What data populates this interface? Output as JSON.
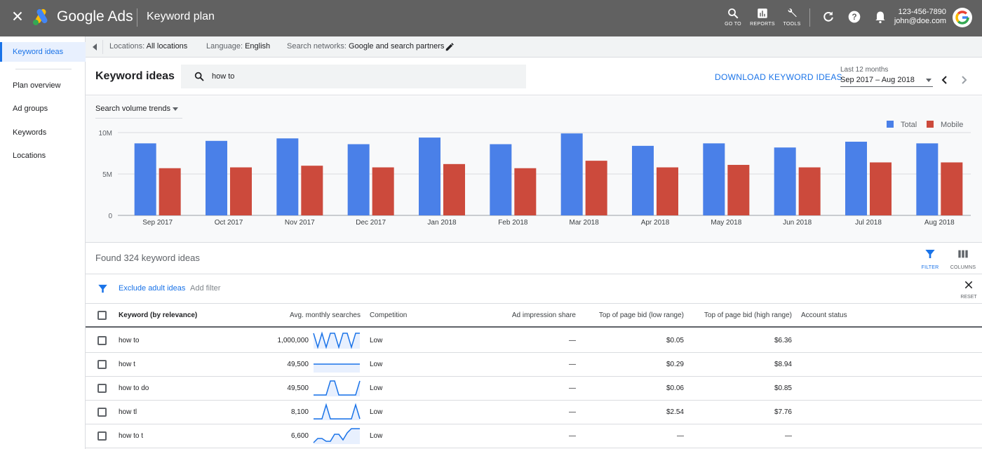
{
  "topbar": {
    "brand": "Google Ads",
    "page_title": "Keyword plan",
    "actions": [
      {
        "icon": "search-icon",
        "label": "GO TO"
      },
      {
        "icon": "bar-chart-icon",
        "label": "REPORTS"
      },
      {
        "icon": "wrench-icon",
        "label": "TOOLS"
      }
    ],
    "account_id": "123-456-7890",
    "account_email": "john@doe.com"
  },
  "sidebar": {
    "items": [
      {
        "label": "Keyword ideas",
        "active": true
      },
      {
        "label": "Plan overview"
      },
      {
        "label": "Ad groups"
      },
      {
        "label": "Keywords"
      },
      {
        "label": "Locations"
      }
    ]
  },
  "subbar": {
    "locations_label": "Locations:",
    "locations_value": "All locations",
    "language_label": "Language:",
    "language_value": "English",
    "networks_label": "Search networks:",
    "networks_value": "Google and search partners"
  },
  "header": {
    "title": "Keyword ideas",
    "search_value": "how to",
    "download_label": "DOWNLOAD KEYWORD IDEAS",
    "date_caption": "Last 12 months",
    "date_value": "Sep 2017 – Aug 2018"
  },
  "chart_controls": {
    "metric_select": "Search volume trends"
  },
  "colors": {
    "total": "#4a80e8",
    "mobile": "#cc4a3c",
    "accent": "#1a73e8"
  },
  "chart_data": {
    "type": "bar",
    "categories": [
      "Sep 2017",
      "Oct 2017",
      "Nov 2017",
      "Dec 2017",
      "Jan 2018",
      "Feb 2018",
      "Mar 2018",
      "Apr 2018",
      "May 2018",
      "Jun 2018",
      "Jul 2018",
      "Aug 2018"
    ],
    "series": [
      {
        "name": "Total",
        "values": [
          8.7,
          9.0,
          9.3,
          8.6,
          9.4,
          8.6,
          9.9,
          8.4,
          8.7,
          8.2,
          8.9,
          8.7
        ]
      },
      {
        "name": "Mobile",
        "values": [
          5.7,
          5.8,
          6.0,
          5.8,
          6.2,
          5.7,
          6.6,
          5.8,
          6.1,
          5.8,
          6.4,
          6.4
        ]
      }
    ],
    "unit": "M",
    "yticks": [
      "0",
      "5M",
      "10M"
    ],
    "ylim": [
      0,
      10
    ],
    "grid": true,
    "legend_position": "top-right"
  },
  "results": {
    "found_text": "Found 324 keyword ideas",
    "filter_label": "FILTER",
    "columns_label": "COLUMNS",
    "exclude_label": "Exclude adult ideas",
    "add_filter": "Add filter",
    "reset_label": "RESET"
  },
  "table": {
    "headers": [
      "Keyword (by relevance)",
      "Avg. monthly searches",
      "Competition",
      "Ad impression share",
      "Top of page bid (low range)",
      "Top of page bid (high range)",
      "Account status"
    ],
    "rows": [
      {
        "keyword": "how to",
        "searches": "1,000,000",
        "competition": "Low",
        "impression_share": "—",
        "bid_low": "$0.05",
        "bid_high": "$6.36",
        "trend": [
          1,
          0,
          1,
          0,
          1,
          1,
          0,
          1,
          1,
          0,
          1,
          1
        ]
      },
      {
        "keyword": "how t",
        "searches": "49,500",
        "competition": "Low",
        "impression_share": "—",
        "bid_low": "$0.29",
        "bid_high": "$8.94",
        "trend": [
          0.5,
          0.5,
          0.5,
          0.5,
          0.5,
          0.5,
          0.5,
          0.5,
          0.5,
          0.5,
          0.5,
          0.5
        ]
      },
      {
        "keyword": "how to do",
        "searches": "49,500",
        "competition": "Low",
        "impression_share": "—",
        "bid_low": "$0.06",
        "bid_high": "$0.85",
        "trend": [
          0,
          0,
          0,
          0,
          1,
          1,
          0,
          0,
          0,
          0,
          0,
          1
        ]
      },
      {
        "keyword": "how tl",
        "searches": "8,100",
        "competition": "Low",
        "impression_share": "—",
        "bid_low": "$2.54",
        "bid_high": "$7.76",
        "trend": [
          0,
          0,
          0,
          1,
          0,
          0,
          0,
          0,
          0,
          0,
          1,
          0
        ]
      },
      {
        "keyword": "how to t",
        "searches": "6,600",
        "competition": "Low",
        "impression_share": "—",
        "bid_low": "—",
        "bid_high": "—",
        "trend": [
          0,
          0.3,
          0.3,
          0.1,
          0.1,
          0.6,
          0.6,
          0.2,
          0.7,
          1,
          1,
          1
        ]
      }
    ]
  }
}
